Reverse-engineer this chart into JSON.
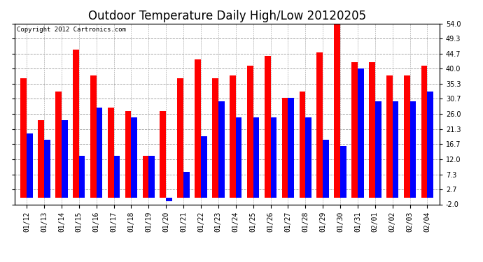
{
  "title": "Outdoor Temperature Daily High/Low 20120205",
  "copyright": "Copyright 2012 Cartronics.com",
  "dates": [
    "01/12",
    "01/13",
    "01/14",
    "01/15",
    "01/16",
    "01/17",
    "01/18",
    "01/19",
    "01/20",
    "01/21",
    "01/22",
    "01/23",
    "01/24",
    "01/25",
    "01/26",
    "01/27",
    "01/28",
    "01/29",
    "01/30",
    "01/31",
    "02/01",
    "02/02",
    "02/03",
    "02/04"
  ],
  "highs": [
    37,
    24,
    33,
    46,
    38,
    28,
    27,
    13,
    27,
    37,
    43,
    37,
    38,
    41,
    44,
    31,
    33,
    45,
    54,
    42,
    42,
    38,
    38,
    41
  ],
  "lows": [
    20,
    18,
    24,
    13,
    28,
    13,
    25,
    13,
    -1,
    8,
    19,
    30,
    25,
    25,
    25,
    31,
    25,
    18,
    16,
    40,
    30,
    30,
    30,
    33
  ],
  "high_color": "#ff0000",
  "low_color": "#0000ff",
  "background_color": "#ffffff",
  "plot_background": "#ffffff",
  "grid_color": "#999999",
  "ylim": [
    -2.0,
    54.0
  ],
  "yticks": [
    -2.0,
    2.7,
    7.3,
    12.0,
    16.7,
    21.3,
    26.0,
    30.7,
    35.3,
    40.0,
    44.7,
    49.3,
    54.0
  ],
  "bar_width": 0.35,
  "title_fontsize": 12,
  "tick_fontsize": 7,
  "copyright_fontsize": 6.5
}
